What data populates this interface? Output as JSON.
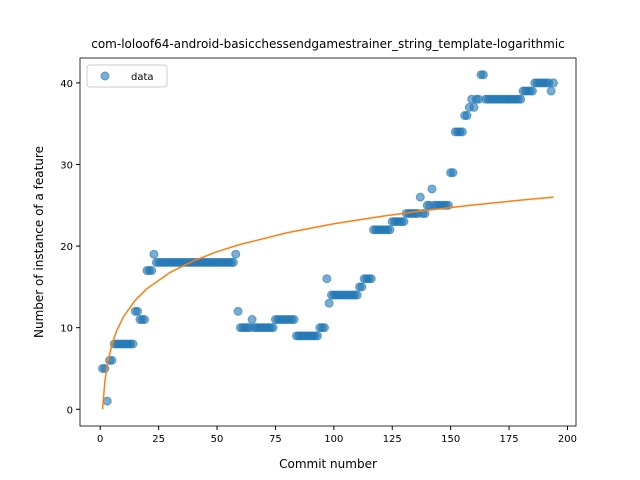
{
  "chart_data": [
    {
      "type": "scatter",
      "title": "com-loloof64-android-basicchessendgamestrainer_string_template-logarithmic",
      "xlabel": "Commit number",
      "ylabel": "Number of instance of a feature",
      "xlim": [
        -8.65,
        203.65
      ],
      "ylim": [
        -2.05,
        43.05
      ],
      "xticks": [
        0,
        25,
        50,
        75,
        100,
        125,
        150,
        175,
        200
      ],
      "yticks": [
        0,
        10,
        20,
        30,
        40
      ],
      "legend": "upper left",
      "series": [
        {
          "name": "data",
          "color": "#1f77b4",
          "x": [
            1,
            2,
            3,
            4,
            5,
            6,
            7,
            8,
            9,
            10,
            11,
            12,
            13,
            14,
            15,
            16,
            17,
            18,
            19,
            20,
            21,
            22,
            23,
            24,
            25,
            26,
            27,
            28,
            29,
            30,
            31,
            32,
            33,
            34,
            35,
            36,
            37,
            38,
            39,
            40,
            41,
            42,
            43,
            44,
            45,
            46,
            47,
            48,
            49,
            50,
            51,
            52,
            53,
            54,
            55,
            56,
            57,
            58,
            59,
            60,
            61,
            62,
            63,
            64,
            65,
            66,
            67,
            68,
            69,
            70,
            71,
            72,
            73,
            74,
            75,
            76,
            77,
            78,
            79,
            80,
            81,
            82,
            83,
            84,
            85,
            86,
            87,
            88,
            89,
            90,
            91,
            92,
            93,
            94,
            95,
            96,
            97,
            98,
            99,
            100,
            101,
            102,
            103,
            104,
            105,
            106,
            107,
            108,
            109,
            110,
            111,
            112,
            113,
            114,
            115,
            116,
            117,
            118,
            119,
            120,
            121,
            122,
            123,
            124,
            125,
            126,
            127,
            128,
            129,
            130,
            131,
            132,
            133,
            134,
            135,
            136,
            137,
            138,
            139,
            140,
            141,
            142,
            143,
            144,
            145,
            146,
            147,
            148,
            149,
            150,
            151,
            152,
            153,
            154,
            155,
            156,
            157,
            158,
            159,
            160,
            161,
            162,
            163,
            164,
            165,
            166,
            167,
            168,
            169,
            170,
            171,
            172,
            173,
            174,
            175,
            176,
            177,
            178,
            179,
            180,
            181,
            182,
            183,
            184,
            185,
            186,
            187,
            188,
            189,
            190,
            191,
            192,
            193,
            194
          ],
          "values": [
            5,
            5,
            1,
            6,
            6,
            8,
            8,
            8,
            8,
            8,
            8,
            8,
            8,
            8,
            12,
            12,
            11,
            11,
            11,
            17,
            17,
            17,
            19,
            18,
            18,
            18,
            18,
            18,
            18,
            18,
            18,
            18,
            18,
            18,
            18,
            18,
            18,
            18,
            18,
            18,
            18,
            18,
            18,
            18,
            18,
            18,
            18,
            18,
            18,
            18,
            18,
            18,
            18,
            18,
            18,
            18,
            18,
            19,
            12,
            10,
            10,
            10,
            10,
            10,
            11,
            10,
            10,
            10,
            10,
            10,
            10,
            10,
            10,
            10,
            11,
            11,
            11,
            11,
            11,
            11,
            11,
            11,
            11,
            9,
            9,
            9,
            9,
            9,
            9,
            9,
            9,
            9,
            9,
            10,
            10,
            10,
            16,
            13,
            14,
            14,
            14,
            14,
            14,
            14,
            14,
            14,
            14,
            14,
            14,
            14,
            15,
            15,
            16,
            16,
            16,
            16,
            22,
            22,
            22,
            22,
            22,
            22,
            22,
            22,
            23,
            23,
            23,
            23,
            23,
            23,
            24,
            24,
            24,
            24,
            24,
            24,
            26,
            24,
            24,
            25,
            25,
            27,
            25,
            25,
            25,
            25,
            25,
            25,
            25,
            29,
            29,
            34,
            34,
            34,
            34,
            36,
            36,
            37,
            38,
            37,
            38,
            38,
            41,
            41,
            38,
            38,
            38,
            38,
            38,
            38,
            38,
            38,
            38,
            38,
            38,
            38,
            38,
            38,
            38,
            38,
            39,
            39,
            39,
            39,
            39,
            40,
            40,
            40,
            40,
            40,
            40,
            40,
            39,
            40
          ]
        }
      ]
    },
    {
      "type": "line",
      "color": "#ff7f0e",
      "x": [
        1,
        2,
        3,
        5,
        7,
        10,
        15,
        20,
        30,
        40,
        50,
        60,
        80,
        100,
        120,
        140,
        160,
        180,
        194
      ],
      "values": [
        0,
        3.42,
        5.42,
        7.94,
        9.6,
        11.36,
        13.36,
        14.78,
        16.79,
        18.2,
        19.31,
        20.21,
        21.63,
        22.73,
        23.63,
        24.39,
        25.05,
        25.63,
        26.0
      ]
    }
  ]
}
